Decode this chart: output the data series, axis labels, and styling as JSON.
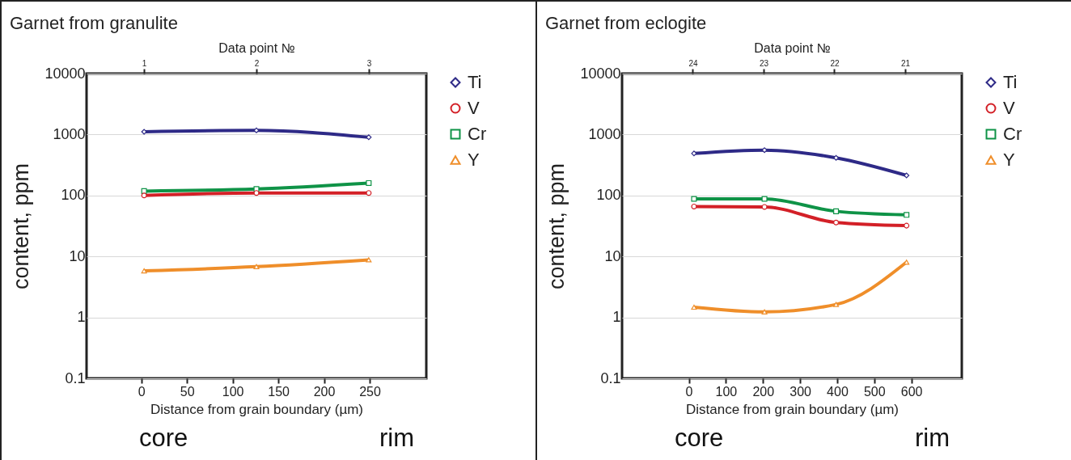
{
  "chart_data": [
    {
      "type": "line",
      "title": "Garnet from granulite",
      "xlabel": "Distance from grain boundary (µm)",
      "x2label": "Data point №",
      "ylabel": "content, ppm",
      "x": [
        3,
        126,
        249
      ],
      "xlim": [
        -60,
        312
      ],
      "xticks": [
        0,
        50,
        100,
        150,
        200,
        250
      ],
      "x2lim": [
        0.49,
        3.51
      ],
      "x2ticks": [
        1,
        2,
        3
      ],
      "ylim": [
        0.1,
        10000
      ],
      "yticks": [
        0.1,
        1,
        10,
        100,
        1000,
        10000
      ],
      "log": "y",
      "grid": "y",
      "legend": "right",
      "annotations": [
        "core",
        "rim"
      ],
      "series": [
        {
          "name": "Ti",
          "color": "#2e2a87",
          "marker": "diamond",
          "values": [
            1110,
            1170,
            900
          ]
        },
        {
          "name": "V",
          "color": "#d32027",
          "marker": "circle",
          "values": [
            100,
            110,
            110
          ]
        },
        {
          "name": "Cr",
          "color": "#0f9347",
          "marker": "square",
          "values": [
            118,
            128,
            160
          ]
        },
        {
          "name": "Y",
          "color": "#ef8e2a",
          "marker": "triangle",
          "values": [
            5.8,
            6.8,
            8.8
          ]
        }
      ]
    },
    {
      "type": "line",
      "title": "Garnet from eclogite",
      "xlabel": "Distance from grain boundary (µm)",
      "x2label": "Data point №",
      "ylabel": "content, ppm",
      "x": [
        14,
        204,
        397,
        587
      ],
      "xlim": [
        -180,
        736
      ],
      "xticks": [
        0,
        100,
        200,
        300,
        400,
        500,
        600
      ],
      "x2lim": [
        25.0,
        20.2
      ],
      "x2ticks": [
        24,
        23,
        22,
        21
      ],
      "ylim": [
        0.1,
        10000
      ],
      "yticks": [
        0.1,
        1,
        10,
        100,
        1000,
        10000
      ],
      "log": "y",
      "grid": "y",
      "legend": "right",
      "annotations": [
        "core",
        "rim"
      ],
      "series": [
        {
          "name": "Ti",
          "color": "#2e2a87",
          "marker": "diamond",
          "values": [
            489,
            555,
            414,
            213
          ]
        },
        {
          "name": "V",
          "color": "#d32027",
          "marker": "circle",
          "values": [
            66,
            65,
            36,
            32
          ]
        },
        {
          "name": "Cr",
          "color": "#0f9347",
          "marker": "square",
          "values": [
            88,
            88,
            55,
            48
          ]
        },
        {
          "name": "Y",
          "color": "#ef8e2a",
          "marker": "triangle",
          "values": [
            1.47,
            1.23,
            1.63,
            8.05
          ]
        }
      ]
    }
  ]
}
